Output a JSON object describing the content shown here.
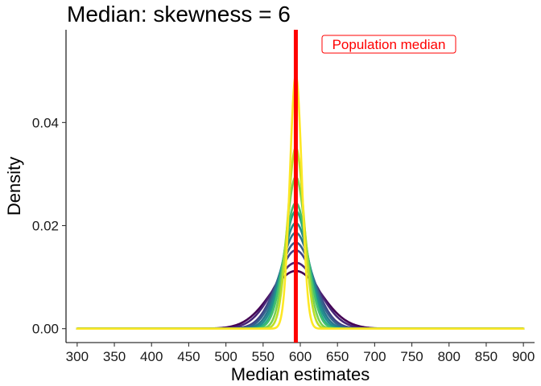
{
  "chart_data": {
    "type": "line",
    "title": "Median: skewness = 6",
    "xlabel": "Median estimates",
    "ylabel": "Density",
    "xlim": [
      285,
      915
    ],
    "ylim": [
      -0.0027,
      0.058
    ],
    "x_ticks": [
      300,
      350,
      400,
      450,
      500,
      550,
      600,
      650,
      700,
      750,
      800,
      850,
      900
    ],
    "y_ticks": [
      0.0,
      0.02,
      0.04
    ],
    "y_tick_labels": [
      "0.00",
      "0.02",
      "0.04"
    ],
    "grid": false,
    "x_domain": [
      300,
      900
    ],
    "series": [
      {
        "peak": 0.0112,
        "sd": 34,
        "color": "#440154"
      },
      {
        "peak": 0.0128,
        "sd": 30,
        "color": "#482576"
      },
      {
        "peak": 0.0152,
        "sd": 25,
        "color": "#414487"
      },
      {
        "peak": 0.0167,
        "sd": 23,
        "color": "#35608d"
      },
      {
        "peak": 0.0186,
        "sd": 20.5,
        "color": "#2a788e"
      },
      {
        "peak": 0.0205,
        "sd": 18.5,
        "color": "#21908d"
      },
      {
        "peak": 0.0228,
        "sd": 16.5,
        "color": "#22a884"
      },
      {
        "peak": 0.0244,
        "sd": 15.5,
        "color": "#43bf71"
      },
      {
        "peak": 0.0295,
        "sd": 13,
        "color": "#7ad151"
      },
      {
        "peak": 0.0352,
        "sd": 11,
        "color": "#bddf26"
      },
      {
        "peak": 0.0493,
        "sd": 8,
        "color": "#fde725"
      }
    ],
    "population_median": {
      "x": 594,
      "color": "#ff0000",
      "label": "Population median"
    }
  }
}
